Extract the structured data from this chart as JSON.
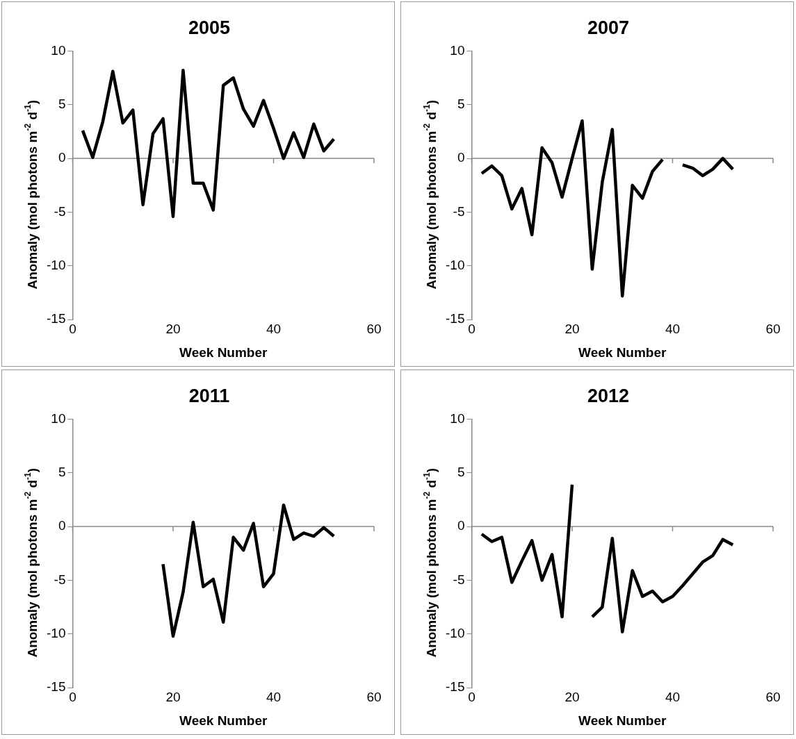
{
  "chart_data": [
    {
      "type": "line",
      "title": "2005",
      "xlabel": "Week Number",
      "ylabel": "Anomaly (mol photons m$^{-2}$ d$^{-1}$)",
      "color": "#000000",
      "xlim": [
        0,
        60
      ],
      "xticks": [
        0,
        20,
        40,
        60
      ],
      "ylim": [
        -15,
        10
      ],
      "yticks": [
        -15,
        -10,
        -5,
        0,
        5,
        10
      ],
      "x": [
        2,
        4,
        6,
        8,
        10,
        12,
        14,
        16,
        18,
        20,
        22,
        24,
        26,
        28,
        30,
        32,
        34,
        36,
        38,
        40,
        42,
        44,
        46,
        48,
        50,
        52
      ],
      "values": [
        2.6,
        0.1,
        3.4,
        8.1,
        3.3,
        4.5,
        -4.3,
        2.3,
        3.7,
        -5.4,
        8.2,
        -2.3,
        -2.3,
        -4.8,
        6.8,
        7.5,
        4.6,
        3.0,
        5.4,
        2.8,
        0.0,
        2.4,
        0.1,
        3.2,
        0.7,
        1.8
      ]
    },
    {
      "type": "line",
      "title": "2007",
      "xlabel": "Week Number",
      "ylabel": "Anomaly (mol photons m$^{-2}$ d$^{-1}$)",
      "color": "#000000",
      "xlim": [
        0,
        60
      ],
      "xticks": [
        0,
        20,
        40,
        60
      ],
      "ylim": [
        -15,
        10
      ],
      "yticks": [
        -15,
        -10,
        -5,
        0,
        5,
        10
      ],
      "x": [
        2,
        4,
        6,
        8,
        10,
        12,
        14,
        16,
        18,
        20,
        22,
        24,
        26,
        28,
        30,
        32,
        34,
        36,
        38,
        40,
        42,
        44,
        46,
        48,
        50,
        52
      ],
      "values": [
        -1.4,
        -0.7,
        -1.6,
        -4.7,
        -2.8,
        -7.1,
        1.0,
        -0.4,
        -3.6,
        0.0,
        3.5,
        -10.3,
        -2.2,
        2.7,
        -12.8,
        -2.5,
        -3.7,
        -1.2,
        -0.1,
        null,
        -0.6,
        -0.9,
        -1.6,
        -1.0,
        0.0,
        -1.0
      ]
    },
    {
      "type": "line",
      "title": "2011",
      "xlabel": "Week Number",
      "ylabel": "Anomaly (mol photons m$^{-2}$ d$^{-1}$)",
      "color": "#000000",
      "xlim": [
        0,
        60
      ],
      "xticks": [
        0,
        20,
        40,
        60
      ],
      "ylim": [
        -15,
        10
      ],
      "yticks": [
        -15,
        -10,
        -5,
        0,
        5,
        10
      ],
      "x": [
        18,
        20,
        22,
        24,
        26,
        28,
        30,
        32,
        34,
        36,
        38,
        40,
        42,
        44,
        46,
        48,
        50,
        52
      ],
      "values": [
        -3.5,
        -10.2,
        -6.1,
        0.4,
        -5.6,
        -4.9,
        -8.9,
        -1.0,
        -2.2,
        0.3,
        -5.6,
        -4.4,
        2.0,
        -1.2,
        -0.6,
        -0.9,
        -0.1,
        -0.9
      ]
    },
    {
      "type": "line",
      "title": "2012",
      "xlabel": "Week Number",
      "ylabel": "Anomaly (mol photons m$^{-2}$ d$^{-1}$)",
      "color": "#000000",
      "xlim": [
        0,
        60
      ],
      "xticks": [
        0,
        20,
        40,
        60
      ],
      "ylim": [
        -15,
        10
      ],
      "yticks": [
        -15,
        -10,
        -5,
        0,
        5,
        10
      ],
      "x": [
        2,
        4,
        6,
        8,
        10,
        12,
        14,
        16,
        18,
        20,
        22,
        24,
        26,
        28,
        30,
        32,
        34,
        36,
        38,
        40,
        42,
        44,
        46,
        48,
        50,
        52
      ],
      "values": [
        -0.7,
        -1.4,
        -1.0,
        -5.2,
        -3.2,
        -1.3,
        -5.0,
        -2.6,
        -8.4,
        3.9,
        null,
        -8.4,
        -7.5,
        -1.1,
        -9.8,
        -4.1,
        -6.5,
        -6.0,
        -7.0,
        -6.5,
        -5.5,
        -4.4,
        -3.3,
        -2.7,
        -1.2,
        -1.7
      ]
    }
  ]
}
